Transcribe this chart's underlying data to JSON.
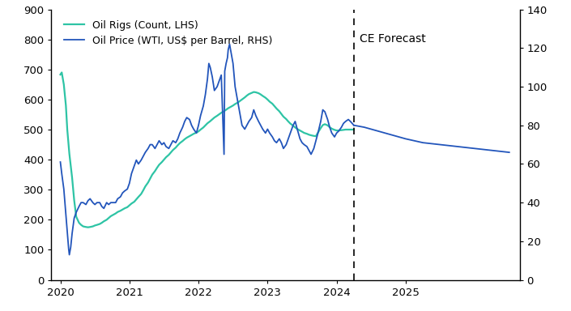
{
  "legend_entries": [
    "Oil Rigs (Count, LHS)",
    "Oil Price (WTI, US$ per Barrel, RHS)"
  ],
  "forecast_label": "CE Forecast",
  "forecast_x": 2024.25,
  "ylim_left": [
    0,
    900
  ],
  "ylim_right": [
    0,
    140
  ],
  "yticks_left": [
    0,
    100,
    200,
    300,
    400,
    500,
    600,
    700,
    800,
    900
  ],
  "yticks_right": [
    0,
    20,
    40,
    60,
    80,
    100,
    120,
    140
  ],
  "xticks": [
    2020,
    2021,
    2022,
    2023,
    2024,
    2025
  ],
  "xlim": [
    2019.87,
    2026.65
  ],
  "color_rigs": "#2EC4A5",
  "color_price": "#2255BB",
  "background_color": "#ffffff",
  "rigs_data": [
    [
      2020.0,
      683
    ],
    [
      2020.02,
      690
    ],
    [
      2020.05,
      650
    ],
    [
      2020.08,
      580
    ],
    [
      2020.1,
      500
    ],
    [
      2020.13,
      420
    ],
    [
      2020.17,
      340
    ],
    [
      2020.2,
      265
    ],
    [
      2020.23,
      210
    ],
    [
      2020.27,
      190
    ],
    [
      2020.3,
      183
    ],
    [
      2020.33,
      178
    ],
    [
      2020.37,
      176
    ],
    [
      2020.4,
      175
    ],
    [
      2020.43,
      176
    ],
    [
      2020.47,
      178
    ],
    [
      2020.5,
      181
    ],
    [
      2020.53,
      183
    ],
    [
      2020.57,
      186
    ],
    [
      2020.6,
      190
    ],
    [
      2020.63,
      195
    ],
    [
      2020.67,
      200
    ],
    [
      2020.7,
      206
    ],
    [
      2020.73,
      212
    ],
    [
      2020.77,
      217
    ],
    [
      2020.8,
      221
    ],
    [
      2020.83,
      226
    ],
    [
      2020.87,
      230
    ],
    [
      2020.9,
      234
    ],
    [
      2020.93,
      238
    ],
    [
      2020.97,
      242
    ],
    [
      2021.0,
      248
    ],
    [
      2021.03,
      254
    ],
    [
      2021.07,
      260
    ],
    [
      2021.1,
      268
    ],
    [
      2021.13,
      276
    ],
    [
      2021.17,
      286
    ],
    [
      2021.2,
      298
    ],
    [
      2021.23,
      311
    ],
    [
      2021.27,
      324
    ],
    [
      2021.3,
      337
    ],
    [
      2021.33,
      350
    ],
    [
      2021.37,
      362
    ],
    [
      2021.4,
      373
    ],
    [
      2021.43,
      383
    ],
    [
      2021.47,
      392
    ],
    [
      2021.5,
      400
    ],
    [
      2021.53,
      408
    ],
    [
      2021.57,
      416
    ],
    [
      2021.6,
      424
    ],
    [
      2021.63,
      432
    ],
    [
      2021.67,
      440
    ],
    [
      2021.7,
      448
    ],
    [
      2021.73,
      455
    ],
    [
      2021.77,
      462
    ],
    [
      2021.8,
      468
    ],
    [
      2021.83,
      473
    ],
    [
      2021.87,
      478
    ],
    [
      2021.9,
      482
    ],
    [
      2021.93,
      486
    ],
    [
      2021.97,
      490
    ],
    [
      2022.0,
      494
    ],
    [
      2022.03,
      500
    ],
    [
      2022.07,
      507
    ],
    [
      2022.1,
      514
    ],
    [
      2022.13,
      521
    ],
    [
      2022.17,
      528
    ],
    [
      2022.2,
      534
    ],
    [
      2022.23,
      540
    ],
    [
      2022.27,
      546
    ],
    [
      2022.3,
      551
    ],
    [
      2022.33,
      556
    ],
    [
      2022.37,
      561
    ],
    [
      2022.4,
      566
    ],
    [
      2022.43,
      571
    ],
    [
      2022.47,
      576
    ],
    [
      2022.5,
      580
    ],
    [
      2022.53,
      585
    ],
    [
      2022.57,
      590
    ],
    [
      2022.6,
      595
    ],
    [
      2022.63,
      600
    ],
    [
      2022.67,
      607
    ],
    [
      2022.7,
      613
    ],
    [
      2022.73,
      618
    ],
    [
      2022.77,
      622
    ],
    [
      2022.8,
      625
    ],
    [
      2022.83,
      624
    ],
    [
      2022.87,
      621
    ],
    [
      2022.9,
      617
    ],
    [
      2022.93,
      612
    ],
    [
      2022.97,
      606
    ],
    [
      2023.0,
      600
    ],
    [
      2023.03,
      593
    ],
    [
      2023.07,
      586
    ],
    [
      2023.1,
      578
    ],
    [
      2023.13,
      570
    ],
    [
      2023.17,
      561
    ],
    [
      2023.2,
      552
    ],
    [
      2023.23,
      543
    ],
    [
      2023.27,
      535
    ],
    [
      2023.3,
      527
    ],
    [
      2023.33,
      520
    ],
    [
      2023.37,
      513
    ],
    [
      2023.4,
      507
    ],
    [
      2023.43,
      502
    ],
    [
      2023.47,
      497
    ],
    [
      2023.5,
      493
    ],
    [
      2023.53,
      489
    ],
    [
      2023.57,
      486
    ],
    [
      2023.6,
      483
    ],
    [
      2023.63,
      481
    ],
    [
      2023.67,
      479
    ],
    [
      2023.7,
      478
    ],
    [
      2023.73,
      490
    ],
    [
      2023.77,
      505
    ],
    [
      2023.8,
      515
    ],
    [
      2023.83,
      518
    ],
    [
      2023.87,
      514
    ],
    [
      2023.9,
      508
    ],
    [
      2023.93,
      503
    ],
    [
      2023.97,
      499
    ],
    [
      2024.0,
      497
    ],
    [
      2024.03,
      497
    ],
    [
      2024.07,
      498
    ],
    [
      2024.1,
      499
    ],
    [
      2024.13,
      500
    ],
    [
      2024.17,
      500
    ],
    [
      2024.2,
      500
    ],
    [
      2024.25,
      500
    ]
  ],
  "price_historical": [
    [
      2020.0,
      61
    ],
    [
      2020.02,
      55
    ],
    [
      2020.05,
      47
    ],
    [
      2020.07,
      38
    ],
    [
      2020.1,
      25
    ],
    [
      2020.12,
      16
    ],
    [
      2020.13,
      13
    ],
    [
      2020.15,
      17
    ],
    [
      2020.17,
      24
    ],
    [
      2020.2,
      32
    ],
    [
      2020.23,
      35
    ],
    [
      2020.27,
      38
    ],
    [
      2020.3,
      40
    ],
    [
      2020.33,
      40
    ],
    [
      2020.37,
      39
    ],
    [
      2020.4,
      41
    ],
    [
      2020.43,
      42
    ],
    [
      2020.47,
      40
    ],
    [
      2020.5,
      39
    ],
    [
      2020.53,
      40
    ],
    [
      2020.57,
      40
    ],
    [
      2020.6,
      38
    ],
    [
      2020.63,
      37
    ],
    [
      2020.67,
      40
    ],
    [
      2020.7,
      39
    ],
    [
      2020.73,
      40
    ],
    [
      2020.77,
      40
    ],
    [
      2020.8,
      40
    ],
    [
      2020.83,
      42
    ],
    [
      2020.87,
      43
    ],
    [
      2020.9,
      45
    ],
    [
      2020.93,
      46
    ],
    [
      2020.97,
      47
    ],
    [
      2021.0,
      50
    ],
    [
      2021.03,
      55
    ],
    [
      2021.07,
      59
    ],
    [
      2021.1,
      62
    ],
    [
      2021.13,
      60
    ],
    [
      2021.17,
      62
    ],
    [
      2021.2,
      64
    ],
    [
      2021.23,
      66
    ],
    [
      2021.27,
      68
    ],
    [
      2021.3,
      70
    ],
    [
      2021.33,
      70
    ],
    [
      2021.37,
      68
    ],
    [
      2021.4,
      70
    ],
    [
      2021.43,
      72
    ],
    [
      2021.47,
      70
    ],
    [
      2021.5,
      71
    ],
    [
      2021.53,
      69
    ],
    [
      2021.57,
      68
    ],
    [
      2021.6,
      70
    ],
    [
      2021.63,
      72
    ],
    [
      2021.67,
      71
    ],
    [
      2021.7,
      73
    ],
    [
      2021.73,
      76
    ],
    [
      2021.77,
      79
    ],
    [
      2021.8,
      82
    ],
    [
      2021.83,
      84
    ],
    [
      2021.87,
      83
    ],
    [
      2021.9,
      80
    ],
    [
      2021.93,
      78
    ],
    [
      2021.97,
      76
    ],
    [
      2022.0,
      80
    ],
    [
      2022.03,
      85
    ],
    [
      2022.07,
      90
    ],
    [
      2022.1,
      96
    ],
    [
      2022.13,
      104
    ],
    [
      2022.15,
      112
    ],
    [
      2022.17,
      110
    ],
    [
      2022.2,
      105
    ],
    [
      2022.23,
      98
    ],
    [
      2022.27,
      100
    ],
    [
      2022.3,
      103
    ],
    [
      2022.33,
      106
    ],
    [
      2022.37,
      65
    ],
    [
      2022.38,
      108
    ],
    [
      2022.4,
      112
    ],
    [
      2022.42,
      115
    ],
    [
      2022.43,
      119
    ],
    [
      2022.45,
      122
    ],
    [
      2022.47,
      118
    ],
    [
      2022.5,
      112
    ],
    [
      2022.53,
      100
    ],
    [
      2022.57,
      92
    ],
    [
      2022.6,
      86
    ],
    [
      2022.63,
      80
    ],
    [
      2022.67,
      78
    ],
    [
      2022.7,
      80
    ],
    [
      2022.73,
      82
    ],
    [
      2022.77,
      84
    ],
    [
      2022.8,
      88
    ],
    [
      2022.83,
      85
    ],
    [
      2022.87,
      82
    ],
    [
      2022.9,
      80
    ],
    [
      2022.93,
      78
    ],
    [
      2022.97,
      76
    ],
    [
      2023.0,
      78
    ],
    [
      2023.03,
      76
    ],
    [
      2023.07,
      74
    ],
    [
      2023.1,
      72
    ],
    [
      2023.13,
      71
    ],
    [
      2023.17,
      73
    ],
    [
      2023.2,
      71
    ],
    [
      2023.23,
      68
    ],
    [
      2023.27,
      70
    ],
    [
      2023.3,
      73
    ],
    [
      2023.33,
      76
    ],
    [
      2023.37,
      80
    ],
    [
      2023.4,
      82
    ],
    [
      2023.43,
      78
    ],
    [
      2023.47,
      73
    ],
    [
      2023.5,
      71
    ],
    [
      2023.53,
      70
    ],
    [
      2023.57,
      69
    ],
    [
      2023.6,
      67
    ],
    [
      2023.63,
      65
    ],
    [
      2023.67,
      68
    ],
    [
      2023.7,
      72
    ],
    [
      2023.73,
      76
    ],
    [
      2023.77,
      82
    ],
    [
      2023.8,
      88
    ],
    [
      2023.83,
      87
    ],
    [
      2023.87,
      83
    ],
    [
      2023.9,
      79
    ],
    [
      2023.93,
      76
    ],
    [
      2023.97,
      74
    ],
    [
      2024.0,
      76
    ],
    [
      2024.03,
      77
    ],
    [
      2024.07,
      79
    ],
    [
      2024.1,
      81
    ],
    [
      2024.13,
      82
    ],
    [
      2024.17,
      83
    ],
    [
      2024.2,
      82
    ],
    [
      2024.25,
      80
    ]
  ],
  "price_forecast": [
    [
      2024.25,
      80
    ],
    [
      2024.4,
      79
    ],
    [
      2024.6,
      77
    ],
    [
      2024.8,
      75
    ],
    [
      2025.0,
      73
    ],
    [
      2025.25,
      71
    ],
    [
      2025.5,
      70
    ],
    [
      2025.75,
      69
    ],
    [
      2026.0,
      68
    ],
    [
      2026.25,
      67
    ],
    [
      2026.5,
      66
    ]
  ]
}
